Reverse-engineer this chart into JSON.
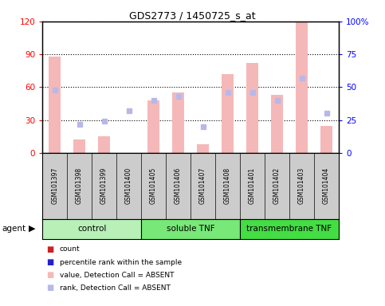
{
  "title": "GDS2773 / 1450725_s_at",
  "samples": [
    "GSM101397",
    "GSM101398",
    "GSM101399",
    "GSM101400",
    "GSM101405",
    "GSM101406",
    "GSM101407",
    "GSM101408",
    "GSM101401",
    "GSM101402",
    "GSM101403",
    "GSM101404"
  ],
  "bar_values": [
    88,
    12,
    15,
    0,
    48,
    55,
    8,
    72,
    82,
    53,
    120,
    25
  ],
  "rank_values": [
    48,
    22,
    24,
    32,
    40,
    43,
    20,
    46,
    46,
    40,
    57,
    30
  ],
  "bar_color_absent": "#f5b8b8",
  "rank_color_absent": "#b8b8e8",
  "bar_color_present": "#e05050",
  "rank_color_present": "#4040b0",
  "absent_flags": [
    true,
    true,
    true,
    true,
    true,
    true,
    true,
    true,
    true,
    true,
    true,
    true
  ],
  "ylim_left": [
    0,
    120
  ],
  "ylim_right": [
    0,
    100
  ],
  "yticks_left": [
    0,
    30,
    60,
    90,
    120
  ],
  "yticks_right": [
    0,
    25,
    50,
    75,
    100
  ],
  "ytick_labels_right": [
    "0",
    "25",
    "50",
    "75",
    "100%"
  ],
  "groups": [
    {
      "label": "control",
      "start": 0,
      "end": 3,
      "color": "#b8f0b8"
    },
    {
      "label": "soluble TNF",
      "start": 4,
      "end": 7,
      "color": "#78e878"
    },
    {
      "label": "transmembrane TNF",
      "start": 8,
      "end": 11,
      "color": "#44dd44"
    }
  ],
  "agent_label": "agent",
  "legend_items": [
    {
      "label": "count",
      "color": "#cc2222"
    },
    {
      "label": "percentile rank within the sample",
      "color": "#2222cc"
    },
    {
      "label": "value, Detection Call = ABSENT",
      "color": "#f5b8b8"
    },
    {
      "label": "rank, Detection Call = ABSENT",
      "color": "#b8b8e8"
    }
  ],
  "bar_width": 0.5,
  "sample_area_color": "#cccccc",
  "plot_bg_color": "#ffffff",
  "fig_bg_color": "#ffffff"
}
